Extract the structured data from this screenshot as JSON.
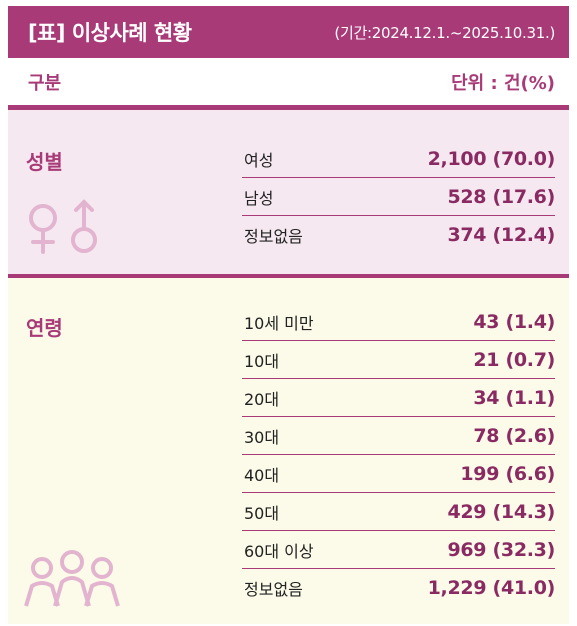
{
  "header": {
    "title": "[표] 이상사례 현황",
    "period": "(기간:2024.12.1.~2025.10.31.)"
  },
  "column_header": {
    "category": "구분",
    "unit": "단위 : 건(%)"
  },
  "gender": {
    "label": "성별",
    "icon": "gender-symbols-icon",
    "rows": [
      {
        "category": "여성",
        "value": "2,100 (70.0)"
      },
      {
        "category": "남성",
        "value": "528 (17.6)"
      },
      {
        "category": "정보없음",
        "value": "374 (12.4)"
      }
    ]
  },
  "age": {
    "label": "연령",
    "icon": "people-group-icon",
    "rows": [
      {
        "category": "10세 미만",
        "value": "43 (1.4)"
      },
      {
        "category": "10대",
        "value": "21 (0.7)"
      },
      {
        "category": "20대",
        "value": "34 (1.1)"
      },
      {
        "category": "30대",
        "value": "78 (2.6)"
      },
      {
        "category": "40대",
        "value": "199 (6.6)"
      },
      {
        "category": "50대",
        "value": "429 (14.3)"
      },
      {
        "category": "60대 이상",
        "value": "969 (32.3)"
      },
      {
        "category": "정보없음",
        "value": "1,229 (41.0)"
      }
    ]
  },
  "colors": {
    "accent": "#a83a78",
    "gender_bg": "#f6e8f0",
    "age_bg": "#fcfbe9",
    "icon": "#e2b4cf"
  }
}
